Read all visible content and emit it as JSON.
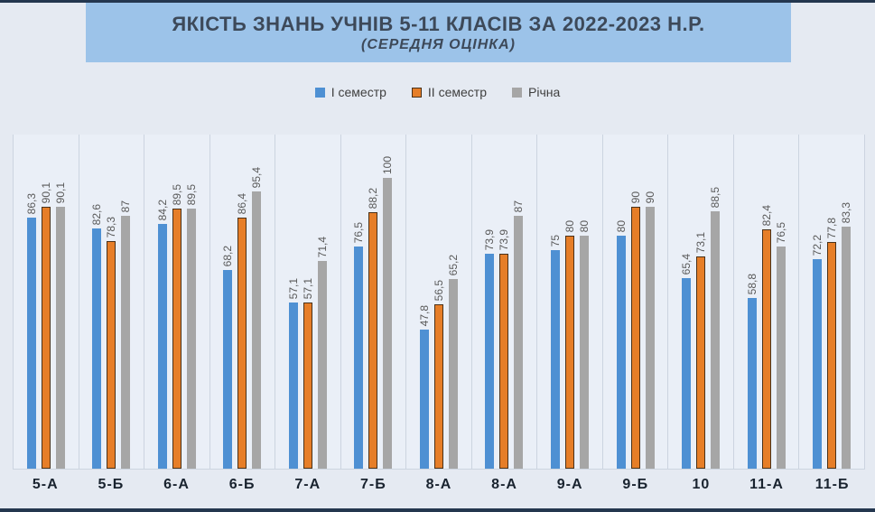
{
  "page": {
    "title": "ЯКІСТЬ ЗНАНЬ УЧНІВ 5-11 КЛАСІВ ЗА 2022-2023 Н.Р.",
    "subtitle": "(СЕРЕДНЯ ОЦІНКА)"
  },
  "colors": {
    "title_bar_bg": "#9cc3e9",
    "title_text": "#3d4959",
    "page_bg": "#e5eaf2",
    "panel_bg": "#eaeff7",
    "panel_separator": "#ccd4e0",
    "edge_strip": "#24374f",
    "data_label": "#595959",
    "axis_label": "#19232f"
  },
  "legend": [
    {
      "label": "І семестр",
      "color": "#4e90d3",
      "border": ""
    },
    {
      "label": "ІІ семестр",
      "color": "#e67e28",
      "border": "#4a3119"
    },
    {
      "label": "Річна",
      "color": "#a6a6a6",
      "border": ""
    }
  ],
  "chart_data": {
    "type": "bar",
    "title": "ЯКІСТЬ ЗНАНЬ УЧНІВ 5-11 КЛАСІВ ЗА 2022-2023 Н.Р.",
    "subtitle": "(СЕРЕДНЯ ОЦІНКА)",
    "categories": [
      "5-А",
      "5-Б",
      "6-А",
      "6-Б",
      "7-А",
      "7-Б",
      "8-А",
      "8-А",
      "9-А",
      "9-Б",
      "10",
      "11-А",
      "11-Б"
    ],
    "series": [
      {
        "name": "І семестр",
        "color": "#4e90d3",
        "border_color": "",
        "values": [
          86.3,
          82.6,
          84.2,
          68.2,
          57.1,
          76.5,
          47.8,
          73.9,
          75,
          80,
          65.4,
          58.8,
          72.2
        ],
        "labels": [
          "86,3",
          "82,6",
          "84,2",
          "68,2",
          "57,1",
          "76,5",
          "47,8",
          "73,9",
          "75",
          "80",
          "65,4",
          "58,8",
          "72,2"
        ]
      },
      {
        "name": "ІІ семестр",
        "color": "#e67e28",
        "border_color": "#4a3119",
        "values": [
          90.1,
          78.3,
          89.5,
          86.4,
          57.1,
          88.2,
          56.5,
          73.9,
          80,
          90,
          73.1,
          82.4,
          77.8
        ],
        "labels": [
          "90,1",
          "78,3",
          "89,5",
          "86,4",
          "57,1",
          "88,2",
          "56,5",
          "73,9",
          "80",
          "90",
          "73,1",
          "82,4",
          "77,8"
        ]
      },
      {
        "name": "Річна",
        "color": "#a6a6a6",
        "border_color": "",
        "values": [
          90.1,
          87,
          89.5,
          95.4,
          71.4,
          100,
          65.2,
          87,
          80,
          90,
          88.5,
          76.5,
          83.3
        ],
        "labels": [
          "90,1",
          "87",
          "89,5",
          "95,4",
          "71,4",
          "100",
          "65,2",
          "87",
          "80",
          "90",
          "88,5",
          "76,5",
          "83,3"
        ]
      }
    ],
    "ylim": [
      0,
      100
    ],
    "grid": false,
    "legend_position": "top",
    "data_labels": "rotated-90-above-bars",
    "y_axis_visible": false
  }
}
